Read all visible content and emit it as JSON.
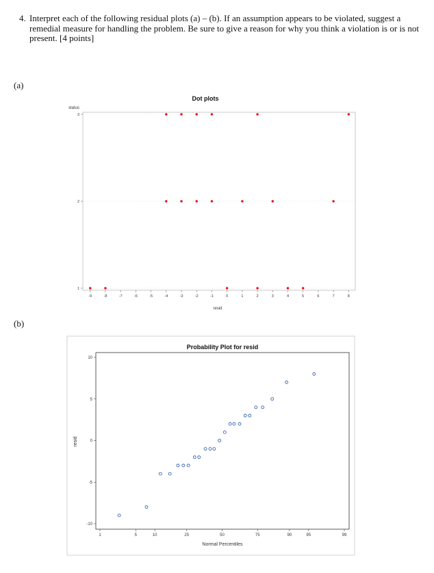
{
  "question": {
    "number": "4.",
    "text": "Interpret each of the following residual plots (a) – (b). If an assumption appears to be violated, suggest a remedial measure for handling the problem. Be sure to give a reason for why you think a violation is or is not present. [4 points]"
  },
  "parts": {
    "a": "(a)",
    "b": "(b)"
  },
  "colors": {
    "dot_red": "#e8101a",
    "circle_blue": "#1f4ea8",
    "grid_gray": "#d0d0d0"
  },
  "chart_data": [
    {
      "type": "scatter",
      "title": "Dot plots",
      "xlabel": "resid",
      "ylabel": "status",
      "x_ticks": [
        "-9",
        "-8",
        "-7",
        "-6",
        "-5",
        "-4",
        "-3",
        "-2",
        "-1",
        "0",
        "1",
        "2",
        "3",
        "4",
        "5",
        "6",
        "7",
        "8"
      ],
      "y_ticks": [
        "1",
        "2",
        "3"
      ],
      "xlim": [
        -9.35,
        8.3
      ],
      "ylim": [
        1,
        3
      ],
      "points": [
        {
          "x": -4,
          "y": 3
        },
        {
          "x": -3,
          "y": 3
        },
        {
          "x": -2,
          "y": 3
        },
        {
          "x": -1,
          "y": 3
        },
        {
          "x": 2,
          "y": 3
        },
        {
          "x": 8,
          "y": 3
        },
        {
          "x": -4,
          "y": 2
        },
        {
          "x": -3,
          "y": 2
        },
        {
          "x": -2,
          "y": 2
        },
        {
          "x": -1,
          "y": 2
        },
        {
          "x": 1,
          "y": 2
        },
        {
          "x": 3,
          "y": 2
        },
        {
          "x": 7,
          "y": 2
        },
        {
          "x": -9,
          "y": 1
        },
        {
          "x": -8,
          "y": 1
        },
        {
          "x": 0,
          "y": 1
        },
        {
          "x": 2,
          "y": 1
        },
        {
          "x": 4,
          "y": 1
        },
        {
          "x": 5,
          "y": 1
        }
      ]
    },
    {
      "type": "scatter",
      "title": "Probability Plot for resid",
      "xlabel": "Normal Percentiles",
      "ylabel": "resid",
      "x_ticks": [
        "1",
        "5",
        "10",
        "25",
        "50",
        "75",
        "90",
        "95",
        "99"
      ],
      "y_ticks": [
        "10",
        "5",
        "0",
        "-5",
        "-10"
      ],
      "ylim": [
        -10,
        10
      ],
      "points": [
        {
          "p": 2.5,
          "y": -9
        },
        {
          "p": 7.5,
          "y": -8
        },
        {
          "p": 12,
          "y": -4
        },
        {
          "p": 16,
          "y": -4
        },
        {
          "p": 20,
          "y": -3
        },
        {
          "p": 23,
          "y": -3
        },
        {
          "p": 26,
          "y": -3
        },
        {
          "p": 30,
          "y": -2
        },
        {
          "p": 33,
          "y": -2
        },
        {
          "p": 37.5,
          "y": -1
        },
        {
          "p": 41,
          "y": -1
        },
        {
          "p": 44,
          "y": -1
        },
        {
          "p": 48,
          "y": 0
        },
        {
          "p": 52,
          "y": 1
        },
        {
          "p": 56,
          "y": 2
        },
        {
          "p": 59,
          "y": 2
        },
        {
          "p": 63,
          "y": 2
        },
        {
          "p": 67,
          "y": 3
        },
        {
          "p": 70,
          "y": 3
        },
        {
          "p": 74,
          "y": 4
        },
        {
          "p": 78,
          "y": 4
        },
        {
          "p": 83,
          "y": 5
        },
        {
          "p": 89,
          "y": 7
        },
        {
          "p": 96,
          "y": 8
        }
      ]
    }
  ]
}
